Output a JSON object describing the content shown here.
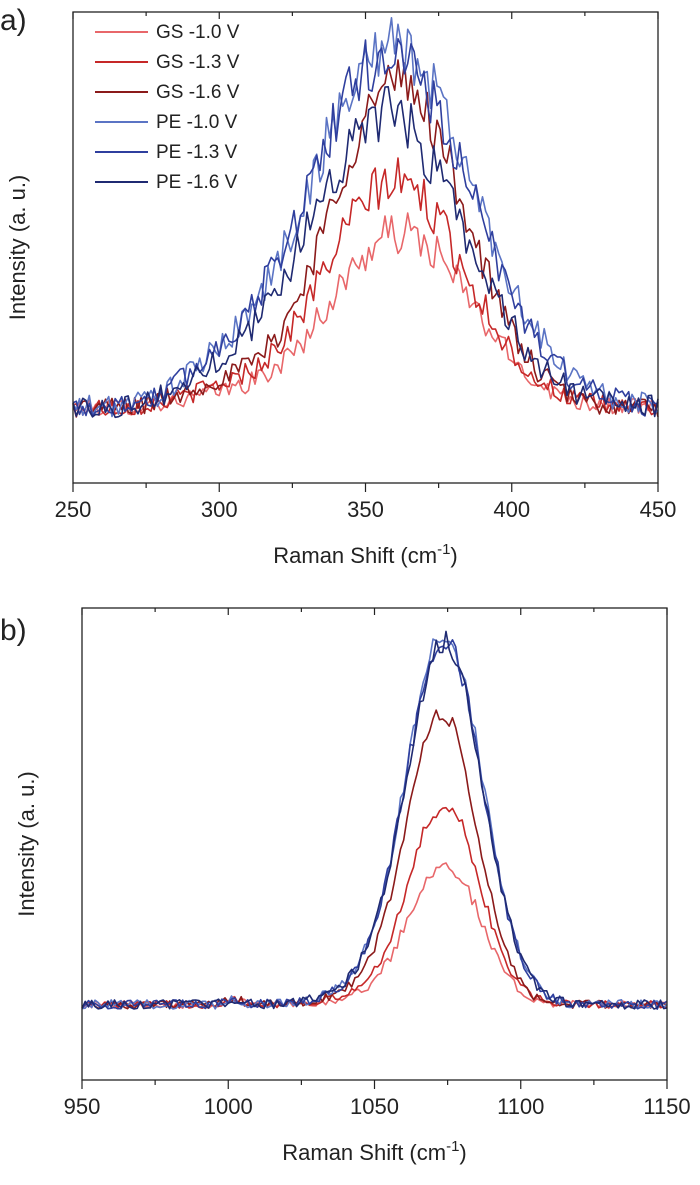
{
  "chart_data": [
    {
      "id": "a",
      "panel_label": "a)",
      "type": "line",
      "xlabel": "Raman Shift (cm",
      "xlabel_sup": "-1",
      "xlabel_close": ")",
      "ylabel": "Intensity (a. u.)",
      "xlim": [
        250,
        450
      ],
      "ylim": [
        0,
        1
      ],
      "xticks": [
        250,
        300,
        350,
        400,
        450
      ],
      "legend": "top-left",
      "series": [
        {
          "name": "GS -1.0 V",
          "color": "#e8676a",
          "peak_x": 362,
          "peak_y": 0.53,
          "width": 24,
          "noise": 0.018
        },
        {
          "name": "GS -1.3 V",
          "color": "#c62828",
          "peak_x": 360,
          "peak_y": 0.64,
          "width": 24,
          "noise": 0.02
        },
        {
          "name": "GS -1.6 V",
          "color": "#8b1a1a",
          "peak_x": 361,
          "peak_y": 0.85,
          "width": 23,
          "noise": 0.022
        },
        {
          "name": "PE -1.0 V",
          "color": "#5b74c4",
          "peak_x": 359,
          "peak_y": 0.93,
          "width": 28,
          "noise": 0.025
        },
        {
          "name": "PE -1.3 V",
          "color": "#2f3f9e",
          "peak_x": 358,
          "peak_y": 0.91,
          "width": 28,
          "noise": 0.025
        },
        {
          "name": "PE -1.6 V",
          "color": "#1f2a72",
          "peak_x": 357,
          "peak_y": 0.78,
          "width": 27,
          "noise": 0.024
        }
      ]
    },
    {
      "id": "b",
      "panel_label": "b)",
      "type": "line",
      "xlabel": "Raman Shift (cm",
      "xlabel_sup": "-1",
      "xlabel_close": ")",
      "ylabel": "Intensity (a. u.)",
      "xlim": [
        950,
        1150
      ],
      "ylim": [
        0,
        1
      ],
      "xticks": [
        950,
        1000,
        1050,
        1100,
        1150
      ],
      "legend": "none",
      "series": [
        {
          "name": "GS -1.0 V",
          "color": "#e8676a",
          "peak_x": 1074,
          "peak_y": 0.46,
          "width": 12,
          "noise": 0.008
        },
        {
          "name": "GS -1.3 V",
          "color": "#c62828",
          "peak_x": 1074,
          "peak_y": 0.58,
          "width": 12,
          "noise": 0.008
        },
        {
          "name": "GS -1.6 V",
          "color": "#8b1a1a",
          "peak_x": 1073,
          "peak_y": 0.77,
          "width": 12,
          "noise": 0.009
        },
        {
          "name": "PE -1.0 V",
          "color": "#5b74c4",
          "peak_x": 1074,
          "peak_y": 0.94,
          "width": 13,
          "noise": 0.01
        },
        {
          "name": "PE -1.3 V",
          "color": "#2f3f9e",
          "peak_x": 1074,
          "peak_y": 0.93,
          "width": 13,
          "noise": 0.01
        },
        {
          "name": "PE -1.6 V",
          "color": "#1f2a72",
          "peak_x": 1074,
          "peak_y": 0.92,
          "width": 13,
          "noise": 0.01
        }
      ]
    }
  ]
}
